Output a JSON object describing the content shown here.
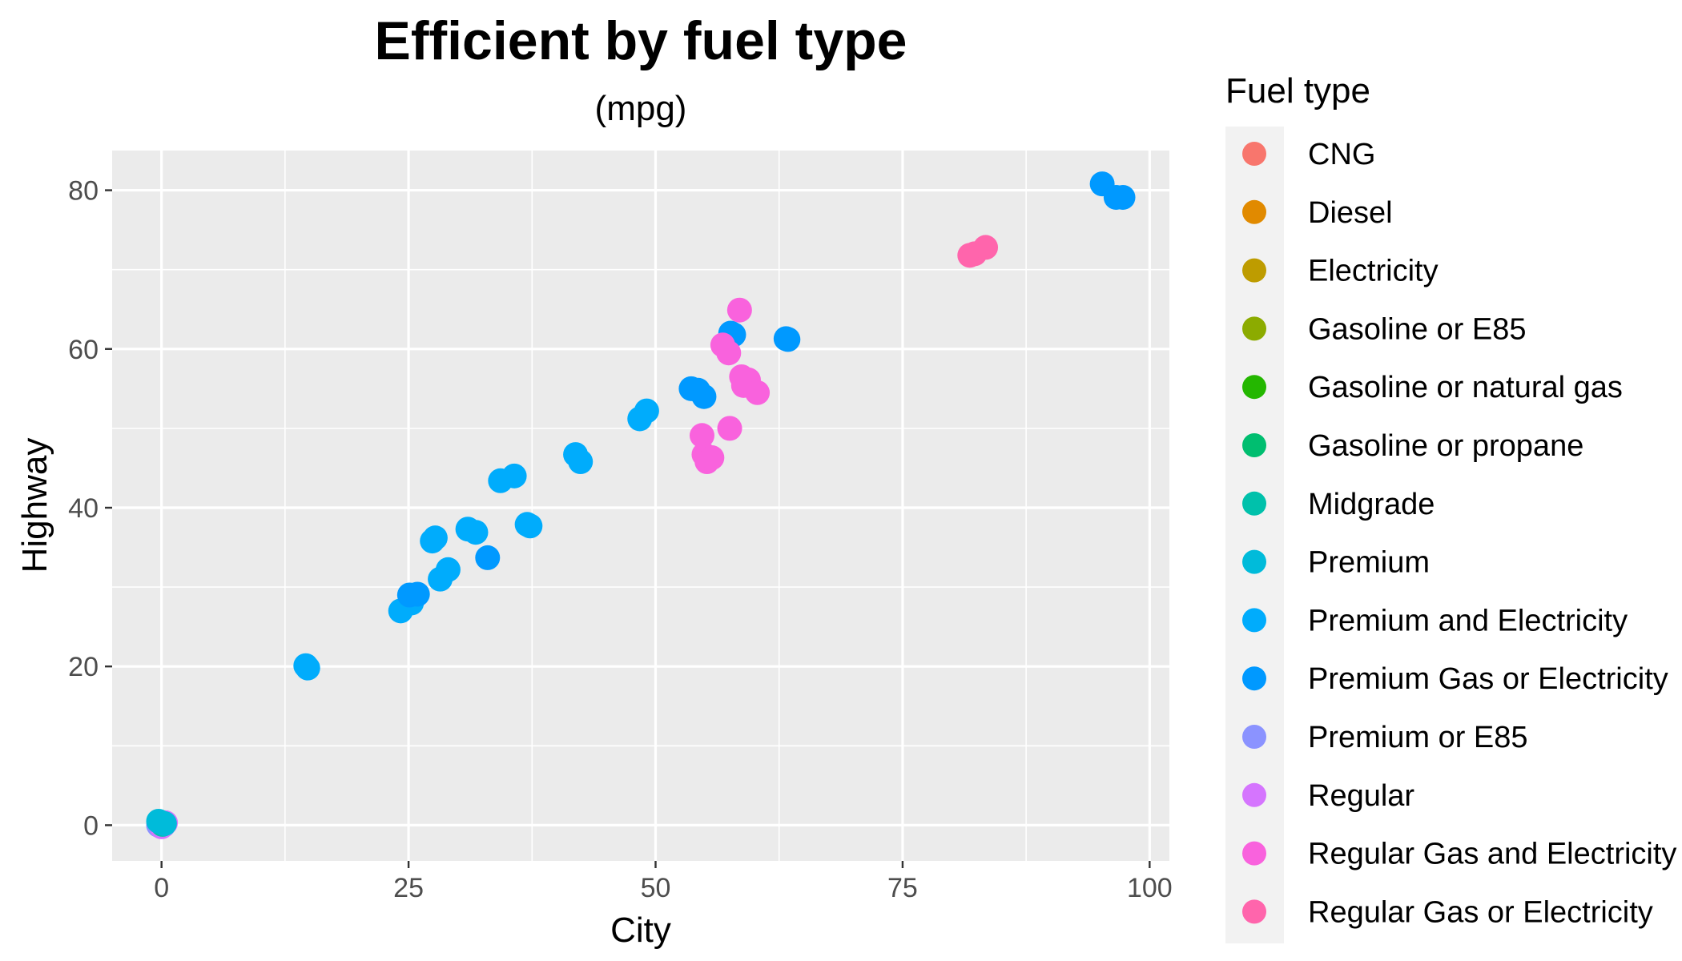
{
  "chart_data": {
    "type": "scatter",
    "title": "Efficient by fuel type",
    "subtitle": "(mpg)",
    "xlabel": "City",
    "ylabel": "Highway",
    "xlim": [
      -5,
      102
    ],
    "ylim": [
      -4.5,
      85
    ],
    "x_ticks": [
      0,
      25,
      50,
      75,
      100
    ],
    "y_ticks": [
      0,
      20,
      40,
      60,
      80
    ],
    "grid": true,
    "legend": {
      "title": "Fuel type",
      "placement": "right",
      "entries": [
        {
          "name": "CNG",
          "color": "#F8766D"
        },
        {
          "name": "Diesel",
          "color": "#E18A00"
        },
        {
          "name": "Electricity",
          "color": "#BE9C00"
        },
        {
          "name": "Gasoline or E85",
          "color": "#8CAB00"
        },
        {
          "name": "Gasoline or natural gas",
          "color": "#24B700"
        },
        {
          "name": "Gasoline or propane",
          "color": "#00BE70"
        },
        {
          "name": "Midgrade",
          "color": "#00C1AB"
        },
        {
          "name": "Premium",
          "color": "#00BBDA"
        },
        {
          "name": "Premium and Electricity",
          "color": "#00ACFC"
        },
        {
          "name": "Premium Gas or Electricity",
          "color": "#0099FF"
        },
        {
          "name": "Premium or E85",
          "color": "#8B93FF"
        },
        {
          "name": "Regular",
          "color": "#D575FE"
        },
        {
          "name": "Regular Gas and Electricity",
          "color": "#F962DD"
        },
        {
          "name": "Regular Gas or Electricity",
          "color": "#FF65AC"
        }
      ]
    },
    "series": [
      {
        "name": "Premium or E85",
        "points": [
          [
            -0.3,
            0
          ],
          [
            0.2,
            0
          ]
        ]
      },
      {
        "name": "Regular",
        "points": [
          [
            0,
            -0.2
          ],
          [
            0.4,
            0.3
          ]
        ]
      },
      {
        "name": "Midgrade",
        "points": [
          [
            0.1,
            0.1
          ]
        ]
      },
      {
        "name": "Premium",
        "points": [
          [
            -0.3,
            0.5
          ],
          [
            0.3,
            0.2
          ]
        ]
      },
      {
        "name": "Premium and Electricity",
        "points": [
          [
            14.6,
            20.1
          ],
          [
            14.8,
            19.8
          ],
          [
            24.2,
            27.0
          ],
          [
            25.3,
            28.0
          ],
          [
            27.4,
            35.8
          ],
          [
            27.7,
            36.2
          ],
          [
            28.2,
            31.0
          ],
          [
            29.0,
            32.2
          ],
          [
            31.0,
            37.3
          ],
          [
            31.8,
            36.9
          ],
          [
            34.3,
            43.4
          ],
          [
            35.7,
            44.0
          ],
          [
            37.0,
            37.9
          ],
          [
            37.3,
            37.7
          ],
          [
            41.9,
            46.7
          ],
          [
            42.4,
            45.8
          ],
          [
            48.4,
            51.2
          ],
          [
            49.1,
            52.2
          ]
        ]
      },
      {
        "name": "Premium Gas or Electricity",
        "points": [
          [
            25.1,
            29.0
          ],
          [
            25.9,
            29.1
          ],
          [
            33.0,
            33.7
          ],
          [
            53.6,
            55.0
          ],
          [
            54.3,
            54.8
          ],
          [
            54.9,
            54.0
          ],
          [
            57.6,
            62.0
          ],
          [
            57.9,
            61.8
          ],
          [
            63.2,
            61.3
          ],
          [
            63.4,
            61.2
          ],
          [
            95.2,
            80.8
          ],
          [
            96.6,
            79.1
          ],
          [
            97.3,
            79.1
          ]
        ]
      },
      {
        "name": "Regular Gas and Electricity",
        "points": [
          [
            54.7,
            49.1
          ],
          [
            54.9,
            46.7
          ],
          [
            55.2,
            45.8
          ],
          [
            55.7,
            46.3
          ],
          [
            56.8,
            60.5
          ],
          [
            57.4,
            59.5
          ],
          [
            57.5,
            50.0
          ],
          [
            58.5,
            64.9
          ],
          [
            58.7,
            56.5
          ],
          [
            58.9,
            55.4
          ],
          [
            59.4,
            56.1
          ],
          [
            60.3,
            54.5
          ]
        ]
      },
      {
        "name": "Regular Gas or Electricity",
        "points": [
          [
            81.8,
            71.8
          ],
          [
            82.3,
            72.0
          ],
          [
            83.4,
            72.8
          ]
        ]
      }
    ]
  }
}
